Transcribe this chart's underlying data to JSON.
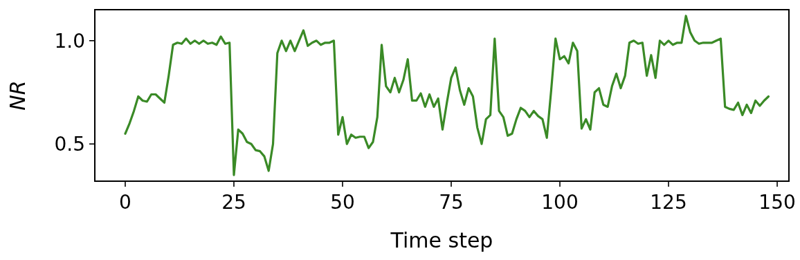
{
  "chart_data": {
    "type": "line",
    "xlabel": "Time step",
    "ylabel": "NR",
    "color": "#3a8a26",
    "x": [
      0,
      1,
      2,
      3,
      4,
      5,
      6,
      7,
      8,
      9,
      10,
      11,
      12,
      13,
      14,
      15,
      16,
      17,
      18,
      19,
      20,
      21,
      22,
      23,
      24,
      25,
      26,
      27,
      28,
      29,
      30,
      31,
      32,
      33,
      34,
      35,
      36,
      37,
      38,
      39,
      40,
      41,
      42,
      43,
      44,
      45,
      46,
      47,
      48,
      49,
      50,
      51,
      52,
      53,
      54,
      55,
      56,
      57,
      58,
      59,
      60,
      61,
      62,
      63,
      64,
      65,
      66,
      67,
      68,
      69,
      70,
      71,
      72,
      73,
      74,
      75,
      76,
      77,
      78,
      79,
      80,
      81,
      82,
      83,
      84,
      85,
      86,
      87,
      88,
      89,
      90,
      91,
      92,
      93,
      94,
      95,
      96,
      97,
      98,
      99,
      100,
      101,
      102,
      103,
      104,
      105,
      106,
      107,
      108,
      109,
      110,
      111,
      112,
      113,
      114,
      115,
      116,
      117,
      118,
      119,
      120,
      121,
      122,
      123,
      124,
      125,
      126,
      127,
      128,
      129,
      130,
      131,
      132,
      133,
      134,
      135,
      136,
      137,
      138,
      139,
      140,
      141,
      142,
      143,
      144,
      145,
      146,
      147,
      148
    ],
    "values": [
      0.55,
      0.6,
      0.66,
      0.73,
      0.71,
      0.705,
      0.74,
      0.74,
      0.72,
      0.7,
      0.83,
      0.98,
      0.99,
      0.985,
      1.01,
      0.985,
      1.0,
      0.985,
      1.0,
      0.985,
      0.99,
      0.98,
      1.02,
      0.985,
      0.99,
      0.35,
      0.57,
      0.55,
      0.51,
      0.5,
      0.47,
      0.465,
      0.44,
      0.37,
      0.5,
      0.94,
      1.0,
      0.95,
      1.0,
      0.95,
      1.0,
      1.05,
      0.975,
      0.99,
      1.0,
      0.98,
      0.99,
      0.99,
      1.0,
      0.545,
      0.63,
      0.5,
      0.545,
      0.53,
      0.535,
      0.535,
      0.48,
      0.51,
      0.63,
      0.98,
      0.78,
      0.75,
      0.82,
      0.75,
      0.81,
      0.91,
      0.71,
      0.71,
      0.745,
      0.68,
      0.74,
      0.68,
      0.72,
      0.57,
      0.7,
      0.82,
      0.87,
      0.76,
      0.69,
      0.77,
      0.73,
      0.58,
      0.5,
      0.62,
      0.64,
      1.01,
      0.66,
      0.63,
      0.54,
      0.55,
      0.62,
      0.675,
      0.66,
      0.63,
      0.66,
      0.635,
      0.62,
      0.53,
      0.76,
      1.01,
      0.91,
      0.925,
      0.89,
      0.99,
      0.95,
      0.575,
      0.62,
      0.57,
      0.75,
      0.77,
      0.69,
      0.68,
      0.78,
      0.84,
      0.77,
      0.83,
      0.99,
      1.0,
      0.985,
      0.99,
      0.83,
      0.93,
      0.82,
      1.0,
      0.98,
      1.0,
      0.98,
      0.99,
      0.99,
      1.12,
      1.04,
      1.0,
      0.985,
      0.99,
      0.99,
      0.99,
      1.0,
      1.01,
      0.68,
      0.67,
      0.665,
      0.7,
      0.64,
      0.69,
      0.65,
      0.71,
      0.685,
      0.71,
      0.73
    ],
    "xlim": [
      -7,
      152.7
    ],
    "xticks": [
      0,
      25,
      50,
      75,
      100,
      125,
      150
    ],
    "ylim": [
      0.32,
      1.15
    ],
    "yticks": [
      {
        "value": 0.5,
        "label": "0.5"
      },
      {
        "value": 1.0,
        "label": "1.0"
      }
    ],
    "grid": false,
    "marker": "none",
    "line_style": "solid"
  }
}
